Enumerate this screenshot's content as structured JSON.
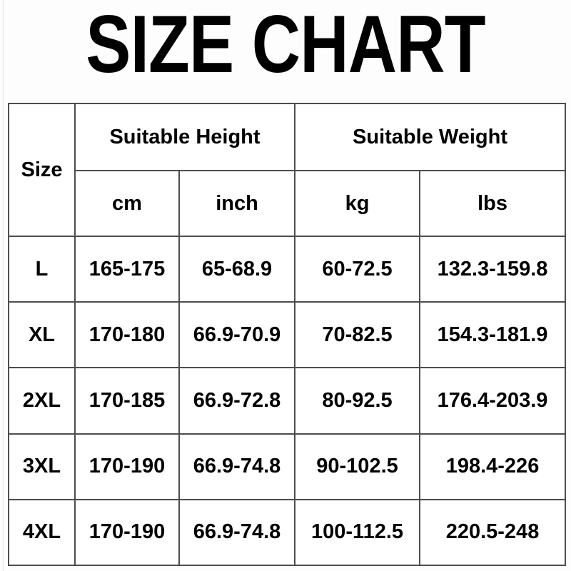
{
  "page": {
    "title": "SIZE CHART"
  },
  "table": {
    "header": {
      "size_label": "Size",
      "height_group": "Suitable Height",
      "weight_group": "Suitable Weight",
      "height_cols": [
        "cm",
        "inch"
      ],
      "weight_cols": [
        "kg",
        "lbs"
      ]
    },
    "rows": [
      {
        "size": "L",
        "cm": "165-175",
        "inch": "65-68.9",
        "kg": "60-72.5",
        "lbs": "132.3-159.8"
      },
      {
        "size": "XL",
        "cm": "170-180",
        "inch": "66.9-70.9",
        "kg": "70-82.5",
        "lbs": "154.3-181.9"
      },
      {
        "size": "2XL",
        "cm": "170-185",
        "inch": "66.9-72.8",
        "kg": "80-92.5",
        "lbs": "176.4-203.9"
      },
      {
        "size": "3XL",
        "cm": "170-190",
        "inch": "66.9-74.8",
        "kg": "90-102.5",
        "lbs": "198.4-226"
      },
      {
        "size": "4XL",
        "cm": "170-190",
        "inch": "66.9-74.8",
        "kg": "100-112.5",
        "lbs": "220.5-248"
      }
    ]
  },
  "colors": {
    "text": "#000000",
    "border": "#4d4d4d",
    "background": "#fdfdfd",
    "table_background": "#ffffff"
  },
  "chart_data": {
    "type": "table",
    "title": "SIZE CHART",
    "columns": [
      "Size",
      "Suitable Height cm",
      "Suitable Height inch",
      "Suitable Weight kg",
      "Suitable Weight lbs"
    ],
    "rows": [
      [
        "L",
        "165-175",
        "65-68.9",
        "60-72.5",
        "132.3-159.8"
      ],
      [
        "XL",
        "170-180",
        "66.9-70.9",
        "70-82.5",
        "154.3-181.9"
      ],
      [
        "2XL",
        "170-185",
        "66.9-72.8",
        "80-92.5",
        "176.4-203.9"
      ],
      [
        "3XL",
        "170-190",
        "66.9-74.8",
        "90-102.5",
        "198.4-226"
      ],
      [
        "4XL",
        "170-190",
        "66.9-74.8",
        "100-112.5",
        "220.5-248"
      ]
    ]
  }
}
